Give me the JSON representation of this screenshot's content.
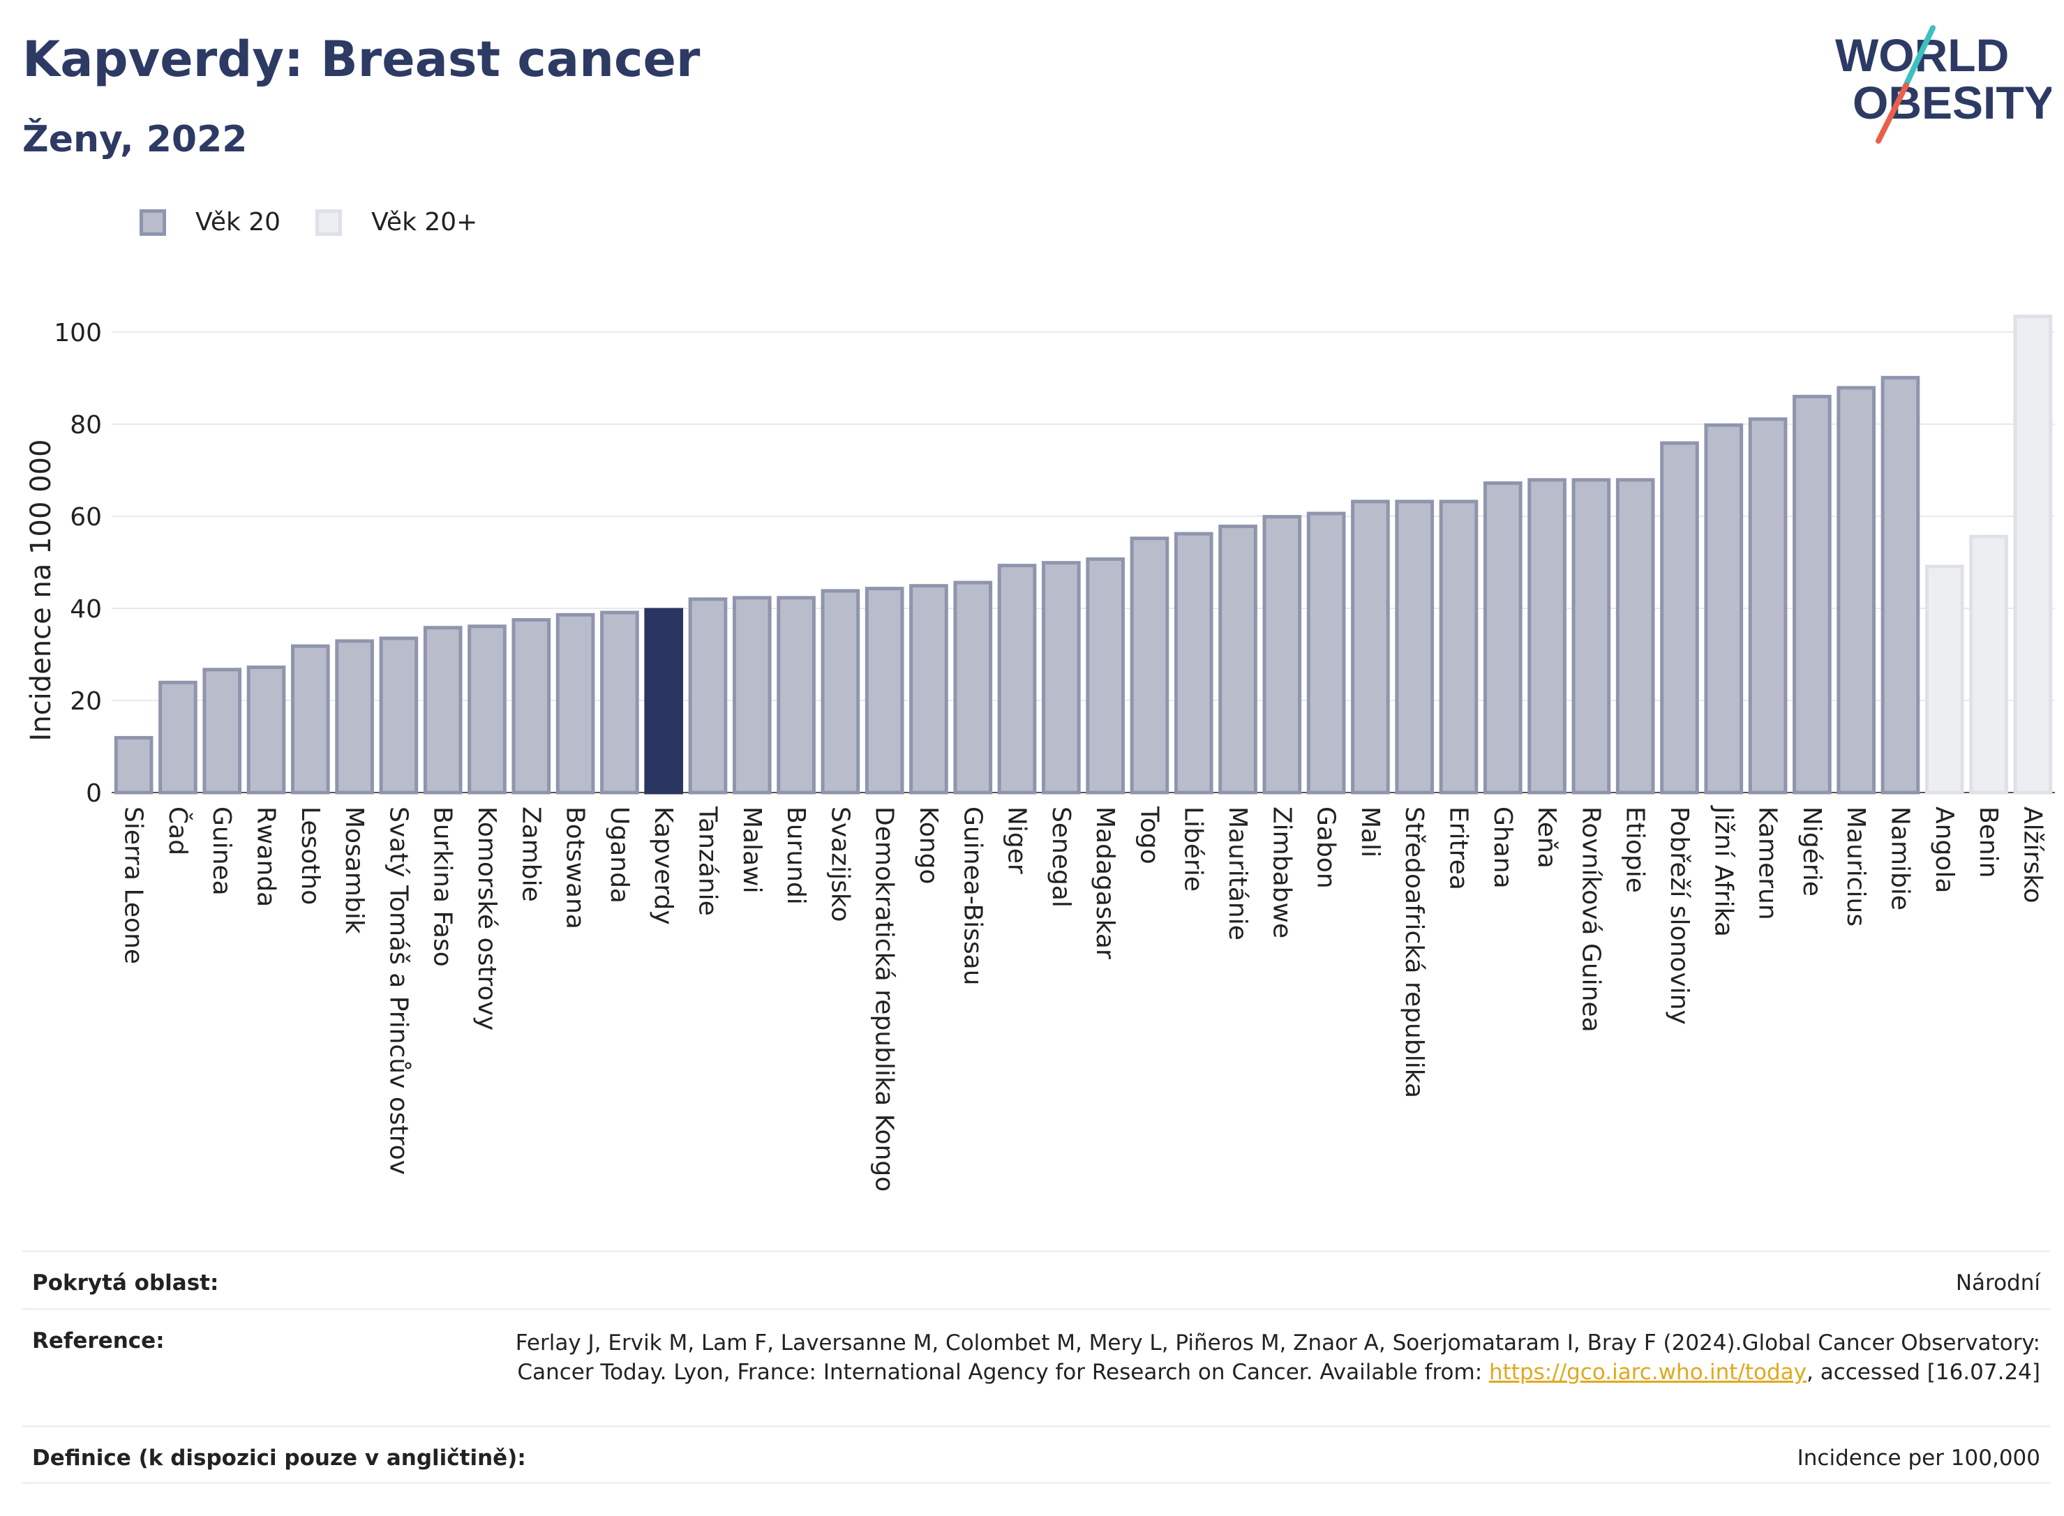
{
  "header": {
    "title": "Kapverdy: Breast cancer",
    "subtitle": "Ženy, 2022"
  },
  "logo": {
    "line1": "WORLD",
    "line2": "OBESITY",
    "colors": {
      "text": "#2d3a64",
      "slash_red": "#e8604c",
      "slash_teal": "#3cc0c0"
    }
  },
  "legend": {
    "items": [
      {
        "label": "Věk 20",
        "color": "#b9bdcb",
        "border": "#8f95ad"
      },
      {
        "label": "Věk 20+",
        "color": "#eceef2",
        "border": "#dfe1e8"
      }
    ]
  },
  "colors": {
    "bar_default": "#b9bdcb",
    "bar_border": "#8f95ad",
    "bar_highlight": "#2b3561",
    "bar_light": "#eceef2",
    "bar_light_border": "#dfe1e8",
    "grid": "#e8e9ee",
    "title": "#2d3a64"
  },
  "chart_data": {
    "type": "bar",
    "ylabel": "Incidence na 100 000",
    "ylim": [
      0,
      107
    ],
    "yticks": [
      0,
      20,
      40,
      60,
      80,
      100
    ],
    "grid": true,
    "legend_position": "top-left",
    "highlight": "Kapverdy",
    "categories": [
      "Sierra Leone",
      "Čad",
      "Guinea",
      "Rwanda",
      "Lesotho",
      "Mosambik",
      "Svatý Tomáš a Princův ostrov",
      "Burkina Faso",
      "Komorské ostrovy",
      "Zambie",
      "Botswana",
      "Uganda",
      "Kapverdy",
      "Tanzánie",
      "Malawi",
      "Burundi",
      "Svazijsko",
      "Demokratická republika Kongo",
      "Kongo",
      "Guinea-Bissau",
      "Niger",
      "Senegal",
      "Madagaskar",
      "Togo",
      "Libérie",
      "Mauritánie",
      "Zimbabwe",
      "Gabon",
      "Mali",
      "Středoafrická republika",
      "Eritrea",
      "Ghana",
      "Keňa",
      "Rovníková Guinea",
      "Etiopie",
      "Pobřeží slonoviny",
      "Jižní Afrika",
      "Kamerun",
      "Nigérie",
      "Mauricius",
      "Namibie",
      "Angola",
      "Benin",
      "Alžírsko"
    ],
    "series": [
      {
        "name": "Věk 20",
        "values": [
          11.9,
          23.9,
          26.7,
          27.2,
          31.8,
          32.9,
          33.5,
          35.8,
          36.1,
          37.5,
          38.6,
          39.1,
          39.7,
          42.0,
          42.3,
          42.3,
          43.8,
          44.3,
          44.9,
          45.6,
          49.3,
          49.9,
          50.7,
          55.2,
          56.2,
          57.8,
          59.9,
          60.6,
          63.2,
          63.2,
          63.2,
          67.2,
          67.9,
          67.9,
          67.9,
          75.9,
          79.8,
          81.1,
          86.0,
          87.9,
          90.1,
          null,
          null,
          null
        ]
      },
      {
        "name": "Věk 20+",
        "values": [
          null,
          null,
          null,
          null,
          null,
          null,
          null,
          null,
          null,
          null,
          null,
          null,
          null,
          null,
          null,
          null,
          null,
          null,
          null,
          null,
          null,
          null,
          null,
          null,
          null,
          null,
          null,
          null,
          null,
          null,
          null,
          null,
          null,
          null,
          null,
          null,
          null,
          null,
          null,
          null,
          null,
          49.1,
          55.6,
          103.4
        ]
      }
    ]
  },
  "footer": {
    "coverage": {
      "label": "Pokrytá oblast:",
      "value": "Národní"
    },
    "reference": {
      "label": "Reference:",
      "text_before": "Ferlay J, Ervik M, Lam F, Laversanne M, Colombet M, Mery L, Piñeros M, Znaor A, Soerjomataram I, Bray F (2024).Global Cancer Observatory: Cancer Today. Lyon, France: International Agency for Research on Cancer. Available from: ",
      "link": "https://gco.iarc.who.int/today",
      "text_after": ", accessed [16.07.24]"
    },
    "definition": {
      "label": "Definice (k dispozici pouze v angličtině):",
      "value": "Incidence per 100,000"
    }
  }
}
